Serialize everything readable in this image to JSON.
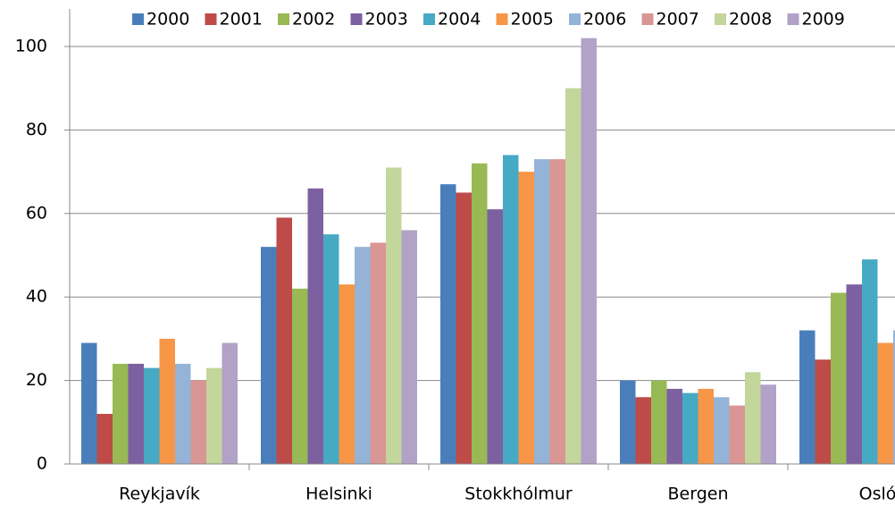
{
  "chart_data": {
    "type": "bar",
    "categories": [
      "Reykjavík",
      "Helsinki",
      "Stokkhólmur",
      "Bergen",
      "Osló"
    ],
    "series": [
      {
        "name": "2000",
        "color": "#4a7ebb",
        "values": [
          29,
          52,
          67,
          20,
          32
        ]
      },
      {
        "name": "2001",
        "color": "#be4b48",
        "values": [
          12,
          59,
          65,
          16,
          25
        ]
      },
      {
        "name": "2002",
        "color": "#98b954",
        "values": [
          24,
          42,
          72,
          20,
          41
        ]
      },
      {
        "name": "2003",
        "color": "#7d60a0",
        "values": [
          24,
          66,
          61,
          18,
          43
        ]
      },
      {
        "name": "2004",
        "color": "#46aac5",
        "values": [
          23,
          55,
          74,
          17,
          49
        ]
      },
      {
        "name": "2005",
        "color": "#f79646",
        "values": [
          30,
          43,
          70,
          18,
          29
        ]
      },
      {
        "name": "2006",
        "color": "#95b3d7",
        "values": [
          24,
          52,
          73,
          16,
          32
        ]
      },
      {
        "name": "2007",
        "color": "#d99694",
        "values": [
          20,
          53,
          73,
          14,
          null
        ]
      },
      {
        "name": "2008",
        "color": "#c3d69b",
        "values": [
          23,
          71,
          90,
          22,
          null
        ]
      },
      {
        "name": "2009",
        "color": "#b2a2c7",
        "values": [
          29,
          56,
          102,
          19,
          null
        ]
      }
    ],
    "ylim": [
      0,
      109
    ],
    "yticks": [
      0,
      20,
      40,
      60,
      80,
      100
    ],
    "grid": true,
    "legend": "top"
  }
}
